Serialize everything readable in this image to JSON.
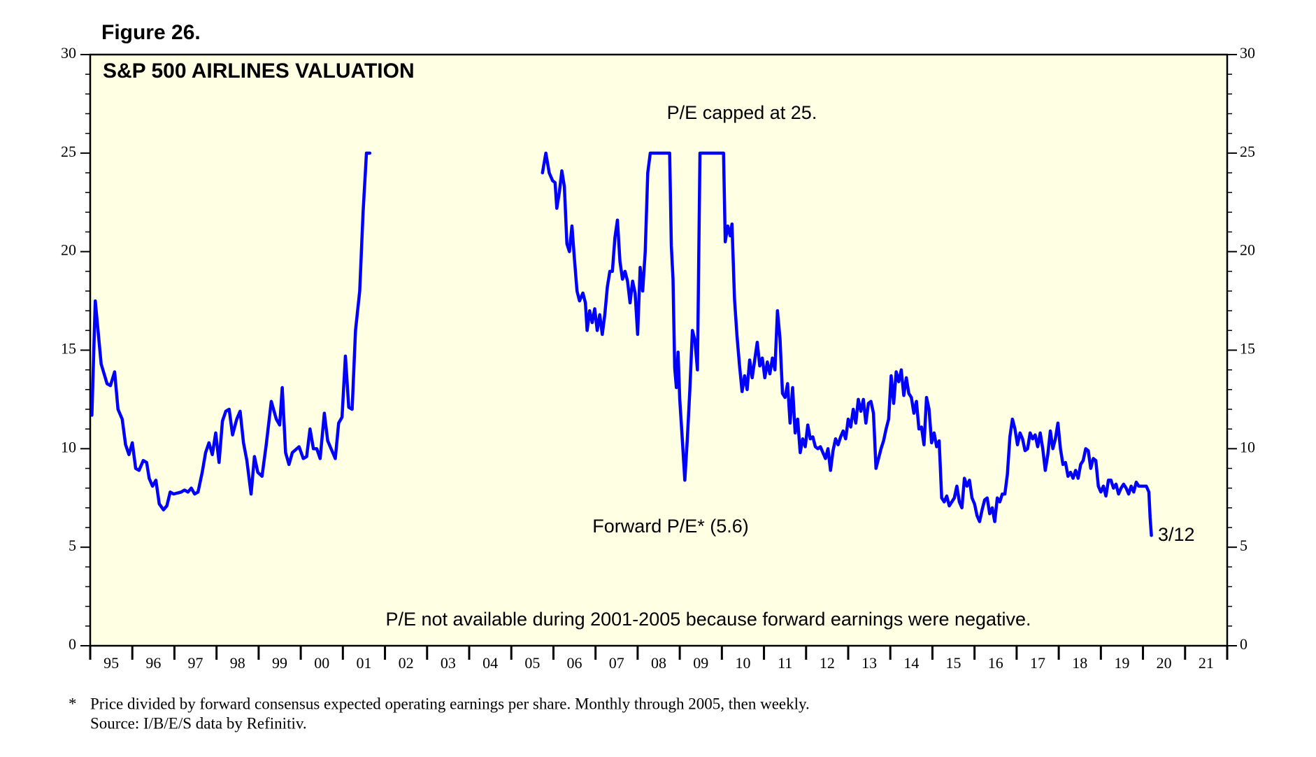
{
  "chart_data": {
    "type": "line",
    "figure_label": "Figure 26.",
    "title": "S&P 500 AIRLINES VALUATION",
    "annotations": [
      "P/E capped at 25.",
      "P/E not available during 2001-2005 because forward earnings were negative."
    ],
    "end_label": "3/12",
    "footnote": [
      "*",
      "Price divided by forward consensus expected operating earnings per share. Monthly through 2005, then weekly.",
      "Source: I/B/E/S data by Refinitiv."
    ],
    "xlim": [
      1995,
      2022
    ],
    "xticks": [
      {
        "value": 1995.5,
        "label": "95"
      },
      {
        "value": 1996.5,
        "label": "96"
      },
      {
        "value": 1997.5,
        "label": "97"
      },
      {
        "value": 1998.5,
        "label": "98"
      },
      {
        "value": 1999.5,
        "label": "99"
      },
      {
        "value": 2000.5,
        "label": "00"
      },
      {
        "value": 2001.5,
        "label": "01"
      },
      {
        "value": 2002.5,
        "label": "02"
      },
      {
        "value": 2003.5,
        "label": "03"
      },
      {
        "value": 2004.5,
        "label": "04"
      },
      {
        "value": 2005.5,
        "label": "05"
      },
      {
        "value": 2006.5,
        "label": "06"
      },
      {
        "value": 2007.5,
        "label": "07"
      },
      {
        "value": 2008.5,
        "label": "08"
      },
      {
        "value": 2009.5,
        "label": "09"
      },
      {
        "value": 2010.5,
        "label": "10"
      },
      {
        "value": 2011.5,
        "label": "11"
      },
      {
        "value": 2012.5,
        "label": "12"
      },
      {
        "value": 2013.5,
        "label": "13"
      },
      {
        "value": 2014.5,
        "label": "14"
      },
      {
        "value": 2015.5,
        "label": "15"
      },
      {
        "value": 2016.5,
        "label": "16"
      },
      {
        "value": 2017.5,
        "label": "17"
      },
      {
        "value": 2018.5,
        "label": "18"
      },
      {
        "value": 2019.5,
        "label": "19"
      },
      {
        "value": 2020.5,
        "label": "20"
      },
      {
        "value": 2021.5,
        "label": "21"
      }
    ],
    "ylim": [
      0,
      30
    ],
    "yticks": [
      0,
      5,
      10,
      15,
      20,
      25,
      30
    ],
    "y2lim": [
      0,
      30
    ],
    "y2ticks": [
      0,
      5,
      10,
      15,
      20,
      25,
      30
    ],
    "background": "#ffffe3",
    "x": [
      1995.04,
      1995.12,
      1995.26,
      1995.4,
      1995.48,
      1995.58,
      1995.66,
      1995.76,
      1995.84,
      1995.92,
      1996.0,
      1996.08,
      1996.16,
      1996.26,
      1996.34,
      1996.4,
      1996.48,
      1996.56,
      1996.64,
      1996.74,
      1996.82,
      1996.9,
      1996.98,
      1997.16,
      1997.24,
      1997.32,
      1997.4,
      1997.48,
      1997.56,
      1997.66,
      1997.74,
      1997.82,
      1997.9,
      1997.98,
      1998.06,
      1998.14,
      1998.22,
      1998.3,
      1998.38,
      1998.48,
      1998.56,
      1998.64,
      1998.72,
      1998.82,
      1998.9,
      1998.98,
      1999.08,
      1999.18,
      1999.3,
      1999.42,
      1999.5,
      1999.56,
      1999.64,
      1999.72,
      1999.8,
      1999.96,
      2000.06,
      2000.14,
      2000.22,
      2000.3,
      2000.38,
      2000.46,
      2000.56,
      2000.64,
      2000.72,
      2000.82,
      2000.9,
      2000.98,
      2001.06,
      2001.14,
      2001.22,
      2001.3,
      2001.4,
      2001.48,
      2001.56,
      2001.64,
      2003.5,
      2005.74,
      2005.82,
      2005.9,
      2005.98,
      2006.04,
      2006.08,
      2006.14,
      2006.2,
      2006.26,
      2006.32,
      2006.38,
      2006.44,
      2006.5,
      2006.56,
      2006.62,
      2006.7,
      2006.76,
      2006.8,
      2006.86,
      2006.92,
      2006.98,
      2007.04,
      2007.1,
      2007.16,
      2007.22,
      2007.28,
      2007.34,
      2007.4,
      2007.46,
      2007.52,
      2007.58,
      2007.64,
      2007.7,
      2007.76,
      2007.82,
      2007.88,
      2007.94,
      2008.0,
      2008.06,
      2008.12,
      2008.18,
      2008.24,
      2008.3,
      2008.76,
      2008.8,
      2008.84,
      2008.88,
      2008.92,
      2008.96,
      2009.0,
      2009.06,
      2009.12,
      2009.18,
      2009.24,
      2009.3,
      2009.36,
      2009.42,
      2009.48,
      2010.04,
      2010.08,
      2010.14,
      2010.2,
      2010.24,
      2010.3,
      2010.36,
      2010.42,
      2010.48,
      2010.54,
      2010.6,
      2010.66,
      2010.72,
      2010.78,
      2010.84,
      2010.9,
      2010.96,
      2011.02,
      2011.08,
      2011.14,
      2011.2,
      2011.26,
      2011.32,
      2011.38,
      2011.44,
      2011.5,
      2011.56,
      2011.62,
      2011.68,
      2011.74,
      2011.8,
      2011.86,
      2011.92,
      2011.98,
      2012.04,
      2012.1,
      2012.16,
      2012.22,
      2012.28,
      2012.34,
      2012.4,
      2012.46,
      2012.52,
      2012.58,
      2012.64,
      2012.7,
      2012.76,
      2012.82,
      2012.88,
      2012.94,
      2013.0,
      2013.06,
      2013.12,
      2013.18,
      2013.24,
      2013.3,
      2013.36,
      2013.42,
      2013.48,
      2013.54,
      2013.6,
      2013.66,
      2013.72,
      2013.78,
      2013.84,
      2013.9,
      2013.96,
      2014.02,
      2014.08,
      2014.14,
      2014.2,
      2014.26,
      2014.32,
      2014.38,
      2014.44,
      2014.5,
      2014.56,
      2014.62,
      2014.68,
      2014.74,
      2014.8,
      2014.86,
      2014.92,
      2014.98,
      2015.04,
      2015.1,
      2015.16,
      2015.22,
      2015.28,
      2015.34,
      2015.4,
      2015.46,
      2015.52,
      2015.58,
      2015.64,
      2015.7,
      2015.76,
      2015.82,
      2015.88,
      2015.94,
      2016.0,
      2016.06,
      2016.12,
      2016.18,
      2016.24,
      2016.3,
      2016.36,
      2016.42,
      2016.48,
      2016.54,
      2016.6,
      2016.66,
      2016.72,
      2016.78,
      2016.84,
      2016.9,
      2016.96,
      2017.02,
      2017.08,
      2017.14,
      2017.2,
      2017.26,
      2017.32,
      2017.38,
      2017.44,
      2017.5,
      2017.56,
      2017.62,
      2017.68,
      2017.74,
      2017.8,
      2017.86,
      2017.92,
      2017.98,
      2018.04,
      2018.1,
      2018.16,
      2018.22,
      2018.28,
      2018.34,
      2018.4,
      2018.46,
      2018.52,
      2018.58,
      2018.64,
      2018.7,
      2018.76,
      2018.82,
      2018.88,
      2018.94,
      2019.0,
      2019.06,
      2019.12,
      2019.18,
      2019.24,
      2019.3,
      2019.36,
      2019.42,
      2019.48,
      2019.54,
      2019.6,
      2019.66,
      2019.72,
      2019.78,
      2019.84,
      2019.9,
      2019.96,
      2020.02,
      2020.08,
      2020.14,
      2020.17,
      2020.2
    ],
    "series": [
      {
        "name": "Forward P/E* (5.6)",
        "color": "#0000ff",
        "values": [
          11.7,
          17.5,
          14.3,
          13.3,
          13.2,
          13.9,
          12.0,
          11.5,
          10.2,
          9.7,
          10.3,
          9.0,
          8.9,
          9.4,
          9.3,
          8.5,
          8.1,
          8.4,
          7.2,
          6.9,
          7.1,
          7.8,
          7.7,
          7.8,
          7.9,
          7.8,
          8.0,
          7.7,
          7.8,
          8.8,
          9.8,
          10.3,
          9.7,
          10.8,
          9.3,
          11.4,
          11.9,
          12.0,
          10.7,
          11.5,
          11.9,
          10.3,
          9.4,
          7.7,
          9.6,
          8.8,
          8.6,
          10.2,
          12.4,
          11.5,
          11.2,
          13.1,
          9.8,
          9.2,
          9.8,
          10.1,
          9.5,
          9.6,
          11.0,
          10.0,
          10.0,
          9.5,
          11.8,
          10.4,
          10.0,
          9.5,
          11.3,
          11.6,
          14.7,
          12.1,
          12.0,
          16.0,
          18.0,
          22.0,
          25,
          25,
          null,
          24.0,
          25,
          24.0,
          23.6,
          23.5,
          22.2,
          23.0,
          24.1,
          23.3,
          20.4,
          20.0,
          21.3,
          19.6,
          18.0,
          17.5,
          17.9,
          17.4,
          16.0,
          17.0,
          16.4,
          17.1,
          16.0,
          16.8,
          15.8,
          16.8,
          18.2,
          19.0,
          19.0,
          20.7,
          21.6,
          19.5,
          18.6,
          19.0,
          18.5,
          17.4,
          18.5,
          17.9,
          15.8,
          19.2,
          18.0,
          20.0,
          24.0,
          25,
          25,
          20.3,
          18.6,
          14.1,
          13.1,
          14.9,
          12.5,
          10.5,
          8.4,
          10.5,
          13.0,
          16.0,
          15.5,
          14.0,
          25,
          25,
          20.5,
          21.3,
          20.8,
          21.4,
          17.6,
          15.7,
          14.2,
          12.9,
          13.7,
          13.0,
          14.5,
          13.6,
          14.5,
          15.4,
          14.2,
          14.6,
          13.6,
          14.4,
          13.8,
          14.6,
          14.0,
          17.0,
          15.6,
          12.8,
          12.6,
          13.3,
          11.3,
          13.1,
          10.8,
          11.5,
          9.8,
          10.5,
          10.1,
          11.2,
          10.5,
          10.6,
          10.1,
          10.0,
          10.1,
          9.8,
          9.5,
          10.0,
          8.9,
          9.9,
          10.5,
          10.2,
          10.6,
          10.9,
          10.5,
          11.5,
          11.1,
          12.0,
          11.3,
          12.5,
          11.9,
          12.5,
          11.3,
          12.3,
          12.4,
          11.8,
          9.0,
          9.5,
          10.0,
          10.4,
          11.0,
          11.5,
          13.7,
          12.3,
          13.9,
          13.4,
          14.0,
          12.7,
          13.6,
          12.8,
          12.6,
          11.8,
          12.4,
          11.0,
          11.1,
          10.2,
          12.6,
          12.0,
          10.3,
          10.8,
          10.1,
          10.4,
          7.5,
          7.3,
          7.6,
          7.1,
          7.3,
          7.5,
          8.1,
          7.3,
          7.0,
          8.5,
          8.1,
          8.4,
          7.5,
          7.2,
          6.6,
          6.3,
          6.9,
          7.4,
          7.5,
          6.7,
          7.0,
          6.3,
          7.5,
          7.3,
          7.7,
          7.7,
          8.7,
          10.6,
          11.5,
          11.0,
          10.2,
          10.8,
          10.5,
          9.9,
          10.0,
          10.8,
          10.5,
          10.7,
          10.1,
          10.8,
          10.0,
          8.9,
          9.7,
          10.9,
          10.0,
          10.5,
          11.3,
          10.0,
          9.2,
          9.3,
          8.6,
          8.8,
          8.5,
          8.9,
          8.5,
          9.2,
          9.4,
          10.0,
          9.9,
          9.0,
          9.5,
          9.4,
          8.1,
          7.8,
          8.1,
          7.6,
          8.4,
          8.4,
          8.0,
          8.2,
          7.7,
          8.0,
          8.2,
          8.0,
          7.7,
          8.1,
          7.8,
          8.3,
          8.1,
          8.1,
          8.1,
          8.1,
          7.8,
          6.5,
          5.6
        ]
      }
    ]
  }
}
